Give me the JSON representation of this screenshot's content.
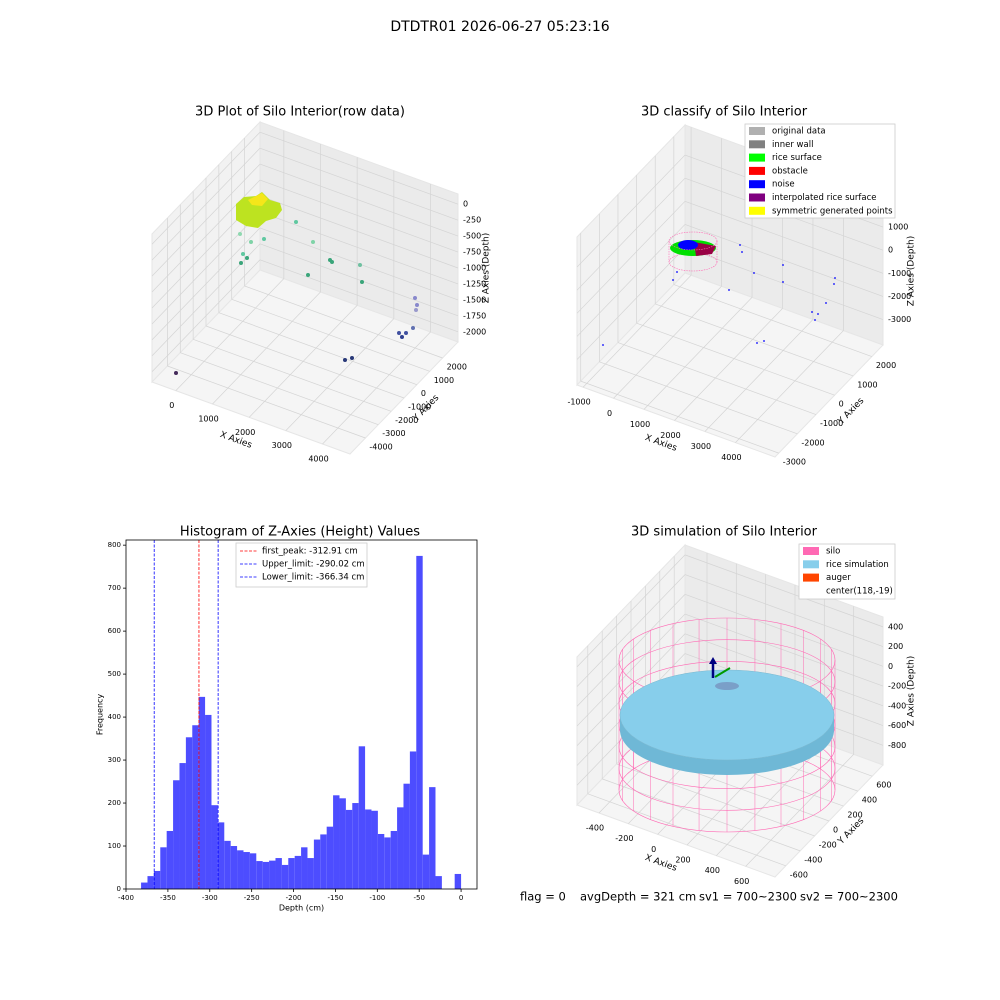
{
  "figure_title": "DTDTR01 2026-06-27 05:23:16",
  "footer": [
    "flag = 0",
    "avgDepth = 321 cm",
    "sv1 = 700~2300",
    "sv2 = 700~2300"
  ],
  "chart_data": [
    {
      "type": "scatter3d",
      "title": "3D Plot of Silo Interior(row data)",
      "xlabel": "X Axies",
      "ylabel": "Y Axies",
      "zlabel": "Z Axies (Depth)",
      "xlim": [
        -650,
        4750
      ],
      "xticks": [
        0,
        1000,
        2000,
        3000,
        4000
      ],
      "ylim": [
        -5200,
        3200
      ],
      "yticks": [
        -4000,
        -3000,
        -2000,
        -1000,
        0,
        1000,
        2000
      ],
      "zlim": [
        -2160,
        160
      ],
      "zticks": [
        -2000,
        -1750,
        -1500,
        -1250,
        -1000,
        -750,
        -500,
        -250,
        0
      ]
    },
    {
      "type": "scatter3d",
      "title": "3D classify of Silo Interior",
      "xlabel": "X Axies",
      "ylabel": "Y Axies",
      "zlabel": "Z Axies (Depth)",
      "xlim": [
        -1200,
        5300
      ],
      "xticks": [
        -1000,
        0,
        1000,
        2000,
        3000,
        4000
      ],
      "ylim": [
        -3200,
        2600
      ],
      "yticks": [
        -3000,
        -2000,
        -1000,
        0,
        1000,
        2000
      ],
      "zlim": [
        -4100,
        2300
      ],
      "zticks": [
        -3000,
        -2000,
        -1000,
        0,
        1000
      ],
      "series": [
        {
          "name": "original data",
          "color": "#b0b0b0"
        },
        {
          "name": "inner wall",
          "color": "#808080"
        },
        {
          "name": "rice surface",
          "color": "#00ff00"
        },
        {
          "name": "obstacle",
          "color": "#ff0000"
        },
        {
          "name": "noise",
          "color": "#0000ff"
        },
        {
          "name": "interpolated rice surface",
          "color": "#800080"
        },
        {
          "name": "symmetric generated points",
          "color": "#ffff00"
        }
      ]
    },
    {
      "type": "histogram",
      "title": "Histogram of Z-Axies (Height) Values",
      "xlabel": "Depth (cm)",
      "ylabel": "Frequency",
      "color": "#4d4dff",
      "bins": [
        -382,
        -374.36,
        -366.72,
        -359.08,
        -351.44,
        -343.8,
        -336.16,
        -328.52,
        -320.88,
        -313.24,
        -305.6,
        -297.96,
        -290.32,
        -282.68,
        -275.04,
        -267.4,
        -259.76,
        -252.12,
        -244.48,
        -236.84,
        -229.2,
        -221.56,
        -213.92,
        -206.28,
        -198.64,
        -191,
        -183.36,
        -175.72,
        -168.08,
        -160.44,
        -152.8,
        -145.16,
        -137.52,
        -129.88,
        -122.24,
        -114.6,
        -106.96,
        -99.32,
        -91.68,
        -84.04,
        -76.4,
        -68.76,
        -61.12,
        -53.48,
        -45.84,
        -38.2,
        -30.56,
        -22.92,
        -15.28,
        -7.64,
        0
      ],
      "values": [
        15,
        30,
        42,
        97,
        135,
        253,
        293,
        353,
        381,
        447,
        405,
        195,
        155,
        112,
        100,
        90,
        86,
        83,
        65,
        63,
        66,
        72,
        56,
        72,
        77,
        97,
        72,
        115,
        127,
        145,
        218,
        211,
        184,
        200,
        332,
        185,
        182,
        128,
        120,
        135,
        190,
        245,
        320,
        775,
        80,
        237,
        30,
        0,
        0,
        35
      ],
      "xlim": [
        -400,
        19
      ],
      "xticks": [
        -400,
        -350,
        -300,
        -250,
        -200,
        -150,
        -100,
        -50,
        0
      ],
      "ylim": [
        0,
        812
      ],
      "yticks": [
        0,
        100,
        200,
        300,
        400,
        500,
        600,
        700,
        800
      ],
      "lines": [
        {
          "name": "first_peak: -312.91 cm",
          "value": -312.91,
          "color": "#ff0000"
        },
        {
          "name": "Upper_limit: -290.02 cm",
          "value": -290.02,
          "color": "#0000ff"
        },
        {
          "name": "Lower_limit: -366.34 cm",
          "value": -366.34,
          "color": "#0000ff"
        }
      ]
    },
    {
      "type": "surface3d",
      "title": "3D simulation of Silo Interior",
      "xlabel": "X Axies",
      "ylabel": "Y Axies",
      "zlabel": "Z Axies (Depth)",
      "xlim": [
        -550,
        800
      ],
      "xticks": [
        -400,
        -200,
        0,
        200,
        400,
        600
      ],
      "ylim": [
        -750,
        750
      ],
      "yticks": [
        -600,
        -400,
        -200,
        0,
        200,
        400,
        600
      ],
      "zlim": [
        -1000,
        500
      ],
      "zticks": [
        -800,
        -600,
        -400,
        -200,
        0,
        200,
        400
      ],
      "series": [
        {
          "name": "silo",
          "color": "#ff69b4"
        },
        {
          "name": "rice simulation",
          "color": "#87ceeb"
        },
        {
          "name": "auger",
          "color": "#ff4500"
        },
        {
          "name": "center(118,-19)"
        }
      ]
    }
  ]
}
